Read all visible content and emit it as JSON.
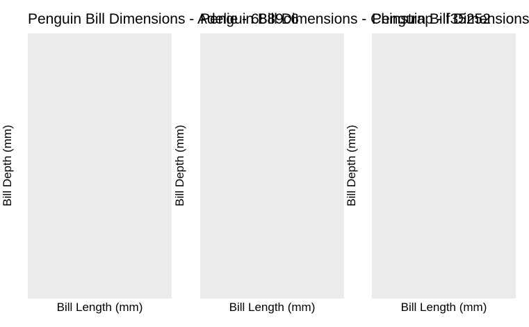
{
  "chart_data": [
    {
      "type": "scatter",
      "title": "Penguin Bill Dimensions - Adelie - 6889c6",
      "xlabel": "Bill Length (mm)",
      "ylabel": "Bill Depth (mm)",
      "series": [],
      "grid": false
    },
    {
      "type": "scatter",
      "title": "Penguin Bill Dimensions - Chinstrap - f35252",
      "xlabel": "Bill Length (mm)",
      "ylabel": "Bill Depth (mm)",
      "series": [],
      "grid": false
    },
    {
      "type": "scatter",
      "title": "Penguin Bill Dimensions",
      "xlabel": "Bill Length (mm)",
      "ylabel": "Bill Depth (mm)",
      "series": [],
      "grid": false
    }
  ],
  "colors": {
    "panel_background": "#ebebeb",
    "page_background": "#ffffff",
    "text": "#000000"
  }
}
